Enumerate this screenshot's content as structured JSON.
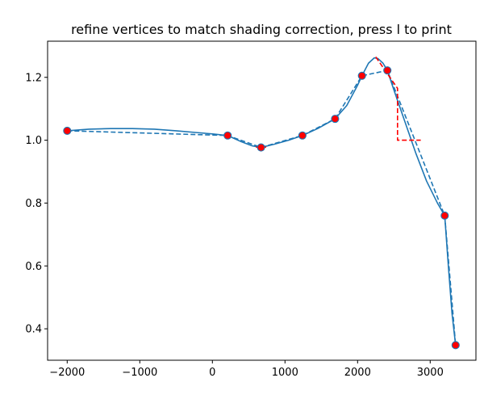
{
  "chart_data": {
    "type": "line",
    "title": "refine vertices to match shading correction, press l to print",
    "xlabel": "",
    "ylabel": "",
    "xlim": [
      -2270,
      3630
    ],
    "ylim": [
      0.3,
      1.315
    ],
    "xticks": [
      -2000,
      -1000,
      0,
      1000,
      2000,
      3000
    ],
    "xtick_labels": [
      "−2000",
      "−1000",
      "0",
      "1000",
      "2000",
      "3000"
    ],
    "yticks": [
      0.4,
      0.6,
      0.8,
      1.0,
      1.2
    ],
    "ytick_labels": [
      "0.4",
      "0.6",
      "0.8",
      "1.0",
      "1.2"
    ],
    "grid": false,
    "series": [
      {
        "role": "vertices",
        "style": "dashed",
        "color": "#1f77b4",
        "marker_face": "#ff0000",
        "x": [
          -2000,
          210,
          670,
          1240,
          1690,
          2060,
          2410,
          3200,
          3350
        ],
        "y": [
          1.03,
          1.015,
          0.977,
          1.015,
          1.068,
          1.205,
          1.222,
          0.76,
          0.348
        ]
      },
      {
        "role": "smooth curve",
        "style": "solid",
        "color": "#1f77b4",
        "x": [
          -2000,
          -1700,
          -1400,
          -1100,
          -800,
          -500,
          -200,
          0,
          210,
          400,
          550,
          670,
          850,
          1050,
          1240,
          1450,
          1690,
          1850,
          2000,
          2060,
          2150,
          2230,
          2280,
          2350,
          2410,
          2500,
          2650,
          2800,
          2950,
          3100,
          3200,
          3250,
          3300,
          3350
        ],
        "y": [
          1.03,
          1.035,
          1.037,
          1.037,
          1.035,
          1.03,
          1.024,
          1.02,
          1.015,
          0.995,
          0.982,
          0.977,
          0.987,
          1.0,
          1.015,
          1.037,
          1.068,
          1.11,
          1.175,
          1.205,
          1.245,
          1.262,
          1.26,
          1.245,
          1.222,
          1.16,
          1.06,
          0.96,
          0.87,
          0.8,
          0.76,
          0.6,
          0.45,
          0.348
        ]
      },
      {
        "role": "selected segment",
        "style": "dashed",
        "color": "#ff0000",
        "x": [
          2250,
          2550,
          2550,
          2870
        ],
        "y": [
          1.265,
          1.165,
          1.0,
          1.0
        ]
      },
      {
        "role": "selected segment",
        "style": "dashed",
        "color": "#ff0000",
        "x": [
          600,
          740
        ],
        "y": [
          0.978,
          0.978
        ]
      }
    ]
  }
}
